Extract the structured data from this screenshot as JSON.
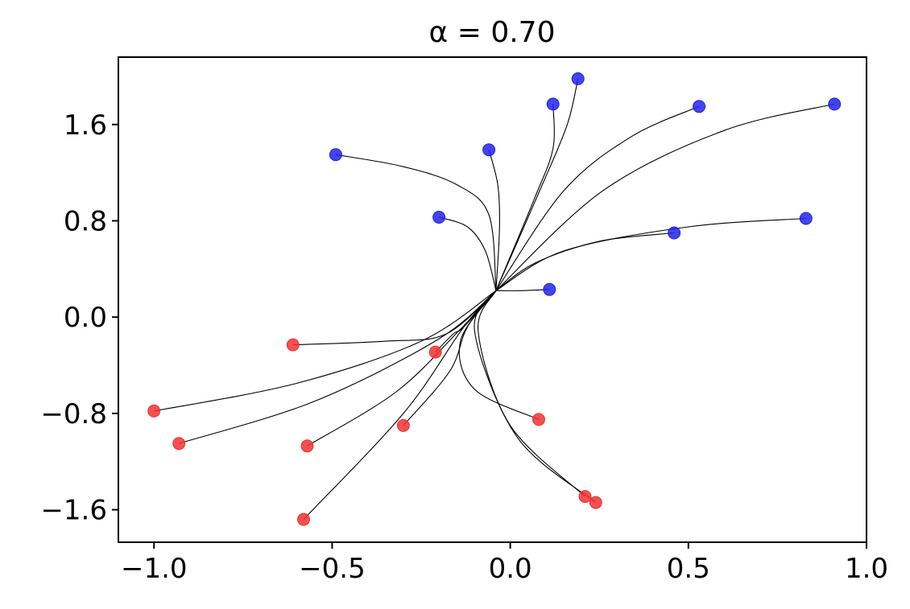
{
  "chart_data": {
    "type": "scatter",
    "title": "α = 0.70",
    "xlabel": "",
    "ylabel": "",
    "xlim": [
      -1.1,
      1.0
    ],
    "ylim": [
      -1.87,
      2.16
    ],
    "x_ticks": [
      -1.0,
      -0.5,
      0.0,
      0.5,
      1.0
    ],
    "x_tick_labels": [
      "−1.0",
      "−0.5",
      "0.0",
      "0.5",
      "1.0"
    ],
    "y_ticks": [
      -1.6,
      -0.8,
      0.0,
      0.8,
      1.6
    ],
    "y_tick_labels": [
      "−1.6",
      "−0.8",
      "0.0",
      "0.8",
      "1.6"
    ],
    "grid": false,
    "series": [
      {
        "color": "#2323e6",
        "points": [
          [
            -0.49,
            1.35
          ],
          [
            -0.06,
            1.39
          ],
          [
            0.12,
            1.77
          ],
          [
            0.19,
            1.98
          ],
          [
            0.53,
            1.75
          ],
          [
            0.91,
            1.77
          ],
          [
            -0.2,
            0.83
          ],
          [
            0.46,
            0.7
          ],
          [
            0.83,
            0.82
          ],
          [
            0.11,
            0.23
          ]
        ]
      },
      {
        "color": "#f03232",
        "points": [
          [
            -0.61,
            -0.23
          ],
          [
            -0.21,
            -0.29
          ],
          [
            -1.0,
            -0.78
          ],
          [
            -0.93,
            -1.05
          ],
          [
            -0.57,
            -1.07
          ],
          [
            -0.3,
            -0.9
          ],
          [
            0.08,
            -0.85
          ],
          [
            -0.58,
            -1.68
          ],
          [
            0.21,
            -1.49
          ],
          [
            0.24,
            -1.54
          ]
        ]
      }
    ],
    "trajectories": [
      [
        [
          -0.49,
          1.35
        ],
        [
          -0.3,
          1.25
        ],
        [
          -0.15,
          1.1
        ],
        [
          -0.06,
          0.85
        ],
        [
          -0.04,
          0.22
        ]
      ],
      [
        [
          -0.06,
          1.39
        ],
        [
          -0.035,
          1.1
        ],
        [
          -0.03,
          0.75
        ],
        [
          -0.04,
          0.22
        ]
      ],
      [
        [
          0.12,
          1.77
        ],
        [
          0.12,
          1.4
        ],
        [
          0.07,
          1.0
        ],
        [
          -0.04,
          0.22
        ]
      ],
      [
        [
          0.19,
          1.98
        ],
        [
          0.16,
          1.6
        ],
        [
          0.09,
          1.1
        ],
        [
          -0.04,
          0.22
        ]
      ],
      [
        [
          0.53,
          1.75
        ],
        [
          0.34,
          1.5
        ],
        [
          0.15,
          1.05
        ],
        [
          -0.04,
          0.22
        ]
      ],
      [
        [
          0.91,
          1.77
        ],
        [
          0.6,
          1.55
        ],
        [
          0.26,
          1.05
        ],
        [
          -0.04,
          0.22
        ]
      ],
      [
        [
          -0.2,
          0.83
        ],
        [
          -0.12,
          0.75
        ],
        [
          -0.07,
          0.55
        ],
        [
          -0.04,
          0.22
        ]
      ],
      [
        [
          0.46,
          0.7
        ],
        [
          0.25,
          0.63
        ],
        [
          0.07,
          0.45
        ],
        [
          -0.04,
          0.22
        ]
      ],
      [
        [
          0.83,
          0.82
        ],
        [
          0.5,
          0.75
        ],
        [
          0.15,
          0.55
        ],
        [
          -0.04,
          0.22
        ]
      ],
      [
        [
          0.11,
          0.23
        ],
        [
          0.03,
          0.22
        ],
        [
          -0.04,
          0.22
        ]
      ],
      [
        [
          -0.61,
          -0.23
        ],
        [
          -0.35,
          -0.2
        ],
        [
          -0.18,
          -0.14
        ],
        [
          -0.04,
          0.22
        ]
      ],
      [
        [
          -0.21,
          -0.29
        ],
        [
          -0.16,
          -0.14
        ],
        [
          -0.13,
          -0.08
        ],
        [
          -0.04,
          0.22
        ]
      ],
      [
        [
          -1.0,
          -0.78
        ],
        [
          -0.6,
          -0.55
        ],
        [
          -0.25,
          -0.2
        ],
        [
          -0.04,
          0.22
        ]
      ],
      [
        [
          -0.93,
          -1.05
        ],
        [
          -0.55,
          -0.7
        ],
        [
          -0.2,
          -0.18
        ],
        [
          -0.04,
          0.22
        ]
      ],
      [
        [
          -0.57,
          -1.07
        ],
        [
          -0.32,
          -0.62
        ],
        [
          -0.14,
          -0.1
        ],
        [
          -0.04,
          0.22
        ]
      ],
      [
        [
          -0.3,
          -0.9
        ],
        [
          -0.17,
          -0.45
        ],
        [
          -0.12,
          -0.08
        ],
        [
          -0.04,
          0.22
        ]
      ],
      [
        [
          0.08,
          -0.85
        ],
        [
          -0.1,
          -0.6
        ],
        [
          -0.14,
          -0.2
        ],
        [
          -0.04,
          0.22
        ]
      ],
      [
        [
          -0.58,
          -1.68
        ],
        [
          -0.3,
          -0.8
        ],
        [
          -0.13,
          -0.08
        ],
        [
          -0.04,
          0.22
        ]
      ],
      [
        [
          0.21,
          -1.49
        ],
        [
          0.0,
          -0.9
        ],
        [
          -0.09,
          -0.12
        ],
        [
          -0.04,
          0.22
        ]
      ],
      [
        [
          0.24,
          -1.54
        ],
        [
          0.02,
          -1.0
        ],
        [
          -0.1,
          -0.12
        ],
        [
          -0.04,
          0.22
        ]
      ]
    ]
  }
}
